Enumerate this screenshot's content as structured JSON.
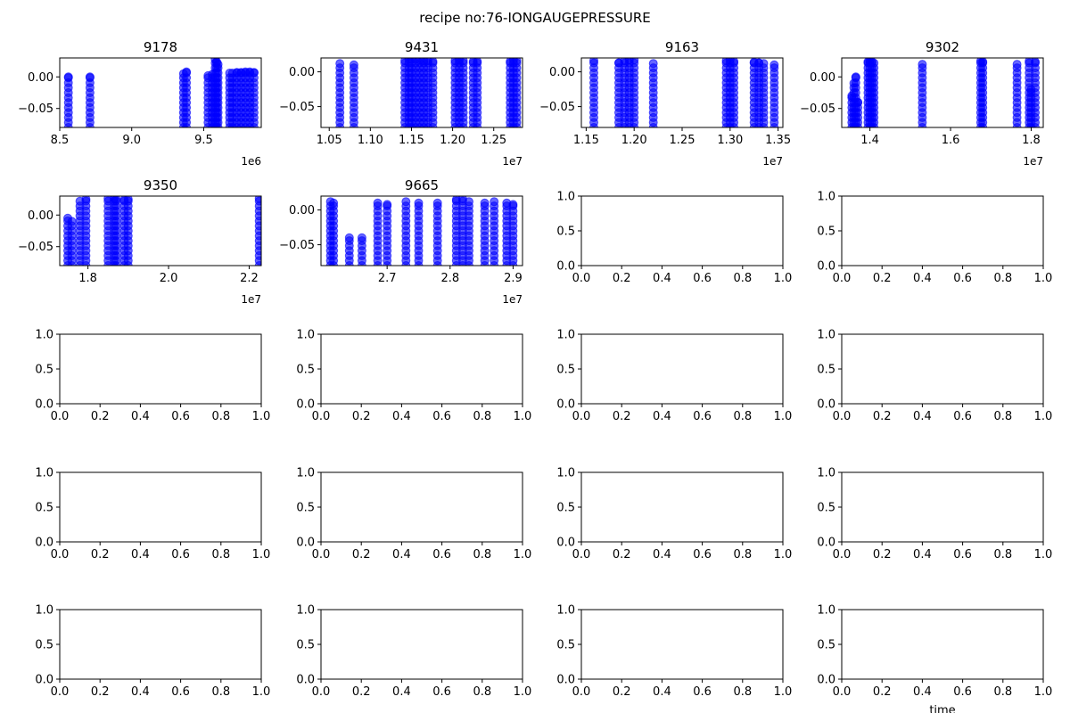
{
  "figure": {
    "suptitle": "recipe no:76-IONGAUGEPRESSURE",
    "bottom_xlabel": "time"
  },
  "style": {
    "marker_color": "#0000ff",
    "marker_alpha": 0.6,
    "axes_color": "#000000",
    "background": "#ffffff"
  },
  "chart_data": [
    {
      "type": "scatter",
      "title": "9178",
      "xlim": [
        8500000.0,
        9900000.0
      ],
      "ylim": [
        -0.08,
        0.03
      ],
      "x_ticks": [
        8500000.0,
        9000000.0,
        9500000.0
      ],
      "x_tick_labels": [
        "8.5",
        "9.0",
        "9.5"
      ],
      "x_offset": "1e6",
      "y_ticks": [
        0.0,
        -0.05
      ],
      "y_tick_labels": [
        "0.00",
        "−0.05"
      ],
      "clusters": [
        {
          "x": 8560000.0,
          "y_range": [
            -0.08,
            0.0
          ]
        },
        {
          "x": 8710000.0,
          "y_range": [
            -0.08,
            0.0
          ]
        },
        {
          "x": 9360000.0,
          "y_range": [
            -0.08,
            0.005
          ]
        },
        {
          "x": 9380000.0,
          "y_range": [
            -0.08,
            0.008
          ]
        },
        {
          "x": 9530000.0,
          "y_range": [
            -0.08,
            0.002
          ]
        },
        {
          "x": 9560000.0,
          "y_range": [
            -0.08,
            0.004
          ]
        },
        {
          "x": 9580000.0,
          "y_range": [
            -0.08,
            0.028
          ]
        },
        {
          "x": 9590000.0,
          "y_range": [
            -0.08,
            0.024
          ]
        },
        {
          "x": 9600000.0,
          "y_range": [
            -0.08,
            0.02
          ]
        },
        {
          "x": 9680000.0,
          "y_range": [
            -0.08,
            0.006
          ]
        },
        {
          "x": 9700000.0,
          "y_range": [
            -0.08,
            0.006
          ]
        },
        {
          "x": 9730000.0,
          "y_range": [
            -0.08,
            0.007
          ]
        },
        {
          "x": 9760000.0,
          "y_range": [
            -0.08,
            0.007
          ]
        },
        {
          "x": 9790000.0,
          "y_range": [
            -0.08,
            0.008
          ]
        },
        {
          "x": 9820000.0,
          "y_range": [
            -0.08,
            0.008
          ]
        },
        {
          "x": 9850000.0,
          "y_range": [
            -0.08,
            0.007
          ]
        }
      ]
    },
    {
      "type": "scatter",
      "title": "9431",
      "xlim": [
        10400000.0,
        12850000.0
      ],
      "ylim": [
        -0.08,
        0.02
      ],
      "x_ticks": [
        10500000.0,
        11000000.0,
        11500000.0,
        12000000.0,
        12500000.0
      ],
      "x_tick_labels": [
        "1.05",
        "1.10",
        "1.15",
        "1.20",
        "1.25"
      ],
      "x_offset": "1e7",
      "y_ticks": [
        0.0,
        -0.05
      ],
      "y_tick_labels": [
        "0.00",
        "−0.05"
      ],
      "clusters": [
        {
          "x": 10630000.0,
          "y_range": [
            -0.08,
            0.012
          ]
        },
        {
          "x": 10800000.0,
          "y_range": [
            -0.08,
            0.01
          ]
        },
        {
          "x": 11420000.0,
          "y_range": [
            -0.08,
            0.016
          ]
        },
        {
          "x": 11470000.0,
          "y_range": [
            -0.08,
            0.018
          ]
        },
        {
          "x": 11500000.0,
          "y_range": [
            -0.08,
            0.018
          ]
        },
        {
          "x": 11550000.0,
          "y_range": [
            -0.08,
            0.018
          ]
        },
        {
          "x": 11600000.0,
          "y_range": [
            -0.08,
            0.017
          ]
        },
        {
          "x": 11650000.0,
          "y_range": [
            -0.08,
            0.016
          ]
        },
        {
          "x": 11700000.0,
          "y_range": [
            -0.08,
            0.016
          ]
        },
        {
          "x": 11760000.0,
          "y_range": [
            -0.08,
            0.015
          ]
        },
        {
          "x": 12030000.0,
          "y_range": [
            -0.08,
            0.016
          ]
        },
        {
          "x": 12080000.0,
          "y_range": [
            -0.08,
            0.017
          ]
        },
        {
          "x": 12130000.0,
          "y_range": [
            -0.08,
            0.016
          ]
        },
        {
          "x": 12250000.0,
          "y_range": [
            -0.08,
            0.015
          ]
        },
        {
          "x": 12300000.0,
          "y_range": [
            -0.08,
            0.015
          ]
        },
        {
          "x": 12700000.0,
          "y_range": [
            -0.08,
            0.015
          ]
        },
        {
          "x": 12740000.0,
          "y_range": [
            -0.08,
            0.017
          ]
        },
        {
          "x": 12780000.0,
          "y_range": [
            -0.08,
            0.016
          ]
        }
      ]
    },
    {
      "type": "scatter",
      "title": "9163",
      "xlim": [
        11450000.0,
        13550000.0
      ],
      "ylim": [
        -0.08,
        0.02
      ],
      "x_ticks": [
        11500000.0,
        12000000.0,
        12500000.0,
        13000000.0,
        13500000.0
      ],
      "x_tick_labels": [
        "1.15",
        "1.20",
        "1.25",
        "1.30",
        "1.35"
      ],
      "x_offset": "1e7",
      "y_ticks": [
        0.0,
        -0.05
      ],
      "y_tick_labels": [
        "0.00",
        "−0.05"
      ],
      "clusters": [
        {
          "x": 11580000.0,
          "y_range": [
            -0.08,
            0.016
          ]
        },
        {
          "x": 11840000.0,
          "y_range": [
            -0.08,
            0.013
          ]
        },
        {
          "x": 11900000.0,
          "y_range": [
            -0.08,
            0.016
          ]
        },
        {
          "x": 11950000.0,
          "y_range": [
            -0.08,
            0.017
          ]
        },
        {
          "x": 12000000.0,
          "y_range": [
            -0.08,
            0.017
          ]
        },
        {
          "x": 12200000.0,
          "y_range": [
            -0.08,
            0.012
          ]
        },
        {
          "x": 12960000.0,
          "y_range": [
            -0.08,
            0.016
          ]
        },
        {
          "x": 13000000.0,
          "y_range": [
            -0.08,
            0.017
          ]
        },
        {
          "x": 13040000.0,
          "y_range": [
            -0.08,
            0.015
          ]
        },
        {
          "x": 13250000.0,
          "y_range": [
            -0.08,
            0.014
          ]
        },
        {
          "x": 13300000.0,
          "y_range": [
            -0.08,
            0.013
          ]
        },
        {
          "x": 13350000.0,
          "y_range": [
            -0.08,
            0.012
          ]
        },
        {
          "x": 13460000.0,
          "y_range": [
            -0.08,
            0.01
          ]
        }
      ]
    },
    {
      "type": "scatter",
      "title": "9302",
      "xlim": [
        13300000.0,
        18300000.0
      ],
      "ylim": [
        -0.08,
        0.03
      ],
      "x_ticks": [
        14000000.0,
        16000000.0,
        18000000.0
      ],
      "x_tick_labels": [
        "1.4",
        "1.6",
        "1.8"
      ],
      "x_offset": "1e7",
      "y_ticks": [
        0.0,
        -0.05
      ],
      "y_tick_labels": [
        "0.00",
        "−0.05"
      ],
      "clusters": [
        {
          "x": 13550000.0,
          "y_range": [
            -0.08,
            -0.03
          ]
        },
        {
          "x": 13600000.0,
          "y_range": [
            -0.08,
            -0.01
          ]
        },
        {
          "x": 13650000.0,
          "y_range": [
            -0.08,
            0.0
          ]
        },
        {
          "x": 13700000.0,
          "y_range": [
            -0.08,
            -0.04
          ]
        },
        {
          "x": 13950000.0,
          "y_range": [
            -0.08,
            0.024
          ]
        },
        {
          "x": 14000000.0,
          "y_range": [
            -0.08,
            0.025
          ]
        },
        {
          "x": 14050000.0,
          "y_range": [
            -0.08,
            0.024
          ]
        },
        {
          "x": 14100000.0,
          "y_range": [
            -0.08,
            0.022
          ]
        },
        {
          "x": 15300000.0,
          "y_range": [
            -0.08,
            0.02
          ]
        },
        {
          "x": 16750000.0,
          "y_range": [
            -0.08,
            0.025
          ]
        },
        {
          "x": 16800000.0,
          "y_range": [
            -0.08,
            0.024
          ]
        },
        {
          "x": 17650000.0,
          "y_range": [
            -0.08,
            0.02
          ]
        },
        {
          "x": 17950000.0,
          "y_range": [
            -0.08,
            0.025
          ]
        },
        {
          "x": 18000000.0,
          "y_range": [
            -0.08,
            -0.02
          ]
        },
        {
          "x": 18100000.0,
          "y_range": [
            -0.08,
            0.024
          ]
        }
      ]
    },
    {
      "type": "scatter",
      "title": "9350",
      "xlim": [
        17300000.0,
        22300000.0
      ],
      "ylim": [
        -0.08,
        0.03
      ],
      "x_ticks": [
        18000000.0,
        20000000.0,
        22000000.0
      ],
      "x_tick_labels": [
        "1.8",
        "2.0",
        "2.2"
      ],
      "x_offset": "1e7",
      "y_ticks": [
        0.0,
        -0.05
      ],
      "y_tick_labels": [
        "0.00",
        "−0.05"
      ],
      "clusters": [
        {
          "x": 17500000.0,
          "y_range": [
            -0.08,
            -0.005
          ]
        },
        {
          "x": 17600000.0,
          "y_range": [
            -0.08,
            -0.01
          ]
        },
        {
          "x": 17800000.0,
          "y_range": [
            -0.08,
            0.022
          ]
        },
        {
          "x": 17950000.0,
          "y_range": [
            -0.08,
            0.025
          ]
        },
        {
          "x": 18500000.0,
          "y_range": [
            -0.08,
            0.026
          ]
        },
        {
          "x": 18650000.0,
          "y_range": [
            -0.08,
            0.026
          ]
        },
        {
          "x": 18700000.0,
          "y_range": [
            -0.08,
            0.025
          ]
        },
        {
          "x": 18900000.0,
          "y_range": [
            -0.08,
            0.024
          ]
        },
        {
          "x": 19000000.0,
          "y_range": [
            -0.08,
            0.025
          ]
        },
        {
          "x": 22250000.0,
          "y_range": [
            -0.08,
            0.026
          ]
        }
      ]
    },
    {
      "type": "scatter",
      "title": "9665",
      "xlim": [
        25950000.0,
        29150000.0
      ],
      "ylim": [
        -0.08,
        0.02
      ],
      "x_ticks": [
        27000000.0,
        28000000.0,
        29000000.0
      ],
      "x_tick_labels": [
        "2.7",
        "2.8",
        "2.9"
      ],
      "x_offset": "1e7",
      "y_ticks": [
        0.0,
        -0.05
      ],
      "y_tick_labels": [
        "0.00",
        "−0.05"
      ],
      "clusters": [
        {
          "x": 26100000.0,
          "y_range": [
            -0.08,
            0.012
          ]
        },
        {
          "x": 26150000.0,
          "y_range": [
            -0.08,
            0.01
          ]
        },
        {
          "x": 26400000.0,
          "y_range": [
            -0.08,
            -0.04
          ]
        },
        {
          "x": 26600000.0,
          "y_range": [
            -0.08,
            -0.04
          ]
        },
        {
          "x": 26850000.0,
          "y_range": [
            -0.08,
            0.01
          ]
        },
        {
          "x": 27000000.0,
          "y_range": [
            -0.08,
            0.008
          ]
        },
        {
          "x": 27300000.0,
          "y_range": [
            -0.08,
            0.012
          ]
        },
        {
          "x": 27500000.0,
          "y_range": [
            -0.08,
            0.01
          ]
        },
        {
          "x": 27800000.0,
          "y_range": [
            -0.08,
            0.01
          ]
        },
        {
          "x": 28100000.0,
          "y_range": [
            -0.08,
            0.015
          ]
        },
        {
          "x": 28200000.0,
          "y_range": [
            -0.08,
            0.016
          ]
        },
        {
          "x": 28300000.0,
          "y_range": [
            -0.08,
            0.012
          ]
        },
        {
          "x": 28550000.0,
          "y_range": [
            -0.08,
            0.01
          ]
        },
        {
          "x": 28700000.0,
          "y_range": [
            -0.08,
            0.012
          ]
        },
        {
          "x": 28900000.0,
          "y_range": [
            -0.08,
            0.01
          ]
        },
        {
          "x": 29000000.0,
          "y_range": [
            -0.08,
            0.008
          ]
        }
      ]
    },
    {
      "type": "scatter",
      "empty": true,
      "xlim": [
        0,
        1
      ],
      "ylim": [
        0,
        1
      ]
    },
    {
      "type": "scatter",
      "empty": true,
      "xlim": [
        0,
        1
      ],
      "ylim": [
        0,
        1
      ]
    },
    {
      "type": "scatter",
      "empty": true,
      "xlim": [
        0,
        1
      ],
      "ylim": [
        0,
        1
      ]
    },
    {
      "type": "scatter",
      "empty": true,
      "xlim": [
        0,
        1
      ],
      "ylim": [
        0,
        1
      ]
    },
    {
      "type": "scatter",
      "empty": true,
      "xlim": [
        0,
        1
      ],
      "ylim": [
        0,
        1
      ]
    },
    {
      "type": "scatter",
      "empty": true,
      "xlim": [
        0,
        1
      ],
      "ylim": [
        0,
        1
      ]
    },
    {
      "type": "scatter",
      "empty": true,
      "xlim": [
        0,
        1
      ],
      "ylim": [
        0,
        1
      ]
    },
    {
      "type": "scatter",
      "empty": true,
      "xlim": [
        0,
        1
      ],
      "ylim": [
        0,
        1
      ]
    },
    {
      "type": "scatter",
      "empty": true,
      "xlim": [
        0,
        1
      ],
      "ylim": [
        0,
        1
      ]
    },
    {
      "type": "scatter",
      "empty": true,
      "xlim": [
        0,
        1
      ],
      "ylim": [
        0,
        1
      ]
    },
    {
      "type": "scatter",
      "empty": true,
      "xlim": [
        0,
        1
      ],
      "ylim": [
        0,
        1
      ]
    },
    {
      "type": "scatter",
      "empty": true,
      "xlim": [
        0,
        1
      ],
      "ylim": [
        0,
        1
      ]
    },
    {
      "type": "scatter",
      "empty": true,
      "xlim": [
        0,
        1
      ],
      "ylim": [
        0,
        1
      ]
    },
    {
      "type": "scatter",
      "empty": true,
      "xlim": [
        0,
        1
      ],
      "ylim": [
        0,
        1
      ]
    }
  ],
  "empty_axis": {
    "ticks": [
      0.0,
      0.2,
      0.4,
      0.6,
      0.8,
      1.0
    ],
    "tick_labels": [
      "0.0",
      "0.2",
      "0.4",
      "0.6",
      "0.8",
      "1.0"
    ],
    "y_ticks": [
      0.0,
      0.5,
      1.0
    ],
    "y_tick_labels": [
      "0.0",
      "0.5",
      "1.0"
    ]
  }
}
